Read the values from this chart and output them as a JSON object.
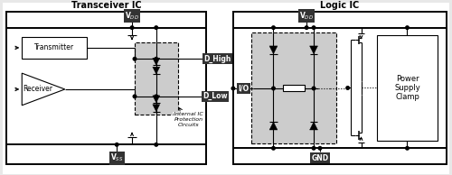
{
  "bg_color": "#e8e8e8",
  "line_color": "#000000",
  "box_fill": "#ffffff",
  "dashed_fill": "#cccccc",
  "dark_fill": "#333333",
  "title_left": "Transceiver IC",
  "title_right": "Logic IC",
  "vdd_label": "V",
  "vdd_sub": "DD",
  "vss_label": "V",
  "vss_sub": "SS",
  "gnd_label": "GND",
  "transmitter_label": "Transmitter",
  "receiver_label": "Receiver",
  "dhigh_label": "D_High",
  "dlow_label": "D_Low",
  "io_label": "I/O",
  "psc_line1": "Power",
  "psc_line2": "Supply",
  "psc_line3": "Clamp",
  "internal_line1": "Internal IC",
  "internal_line2": "Protection",
  "internal_line3": "Circuits"
}
